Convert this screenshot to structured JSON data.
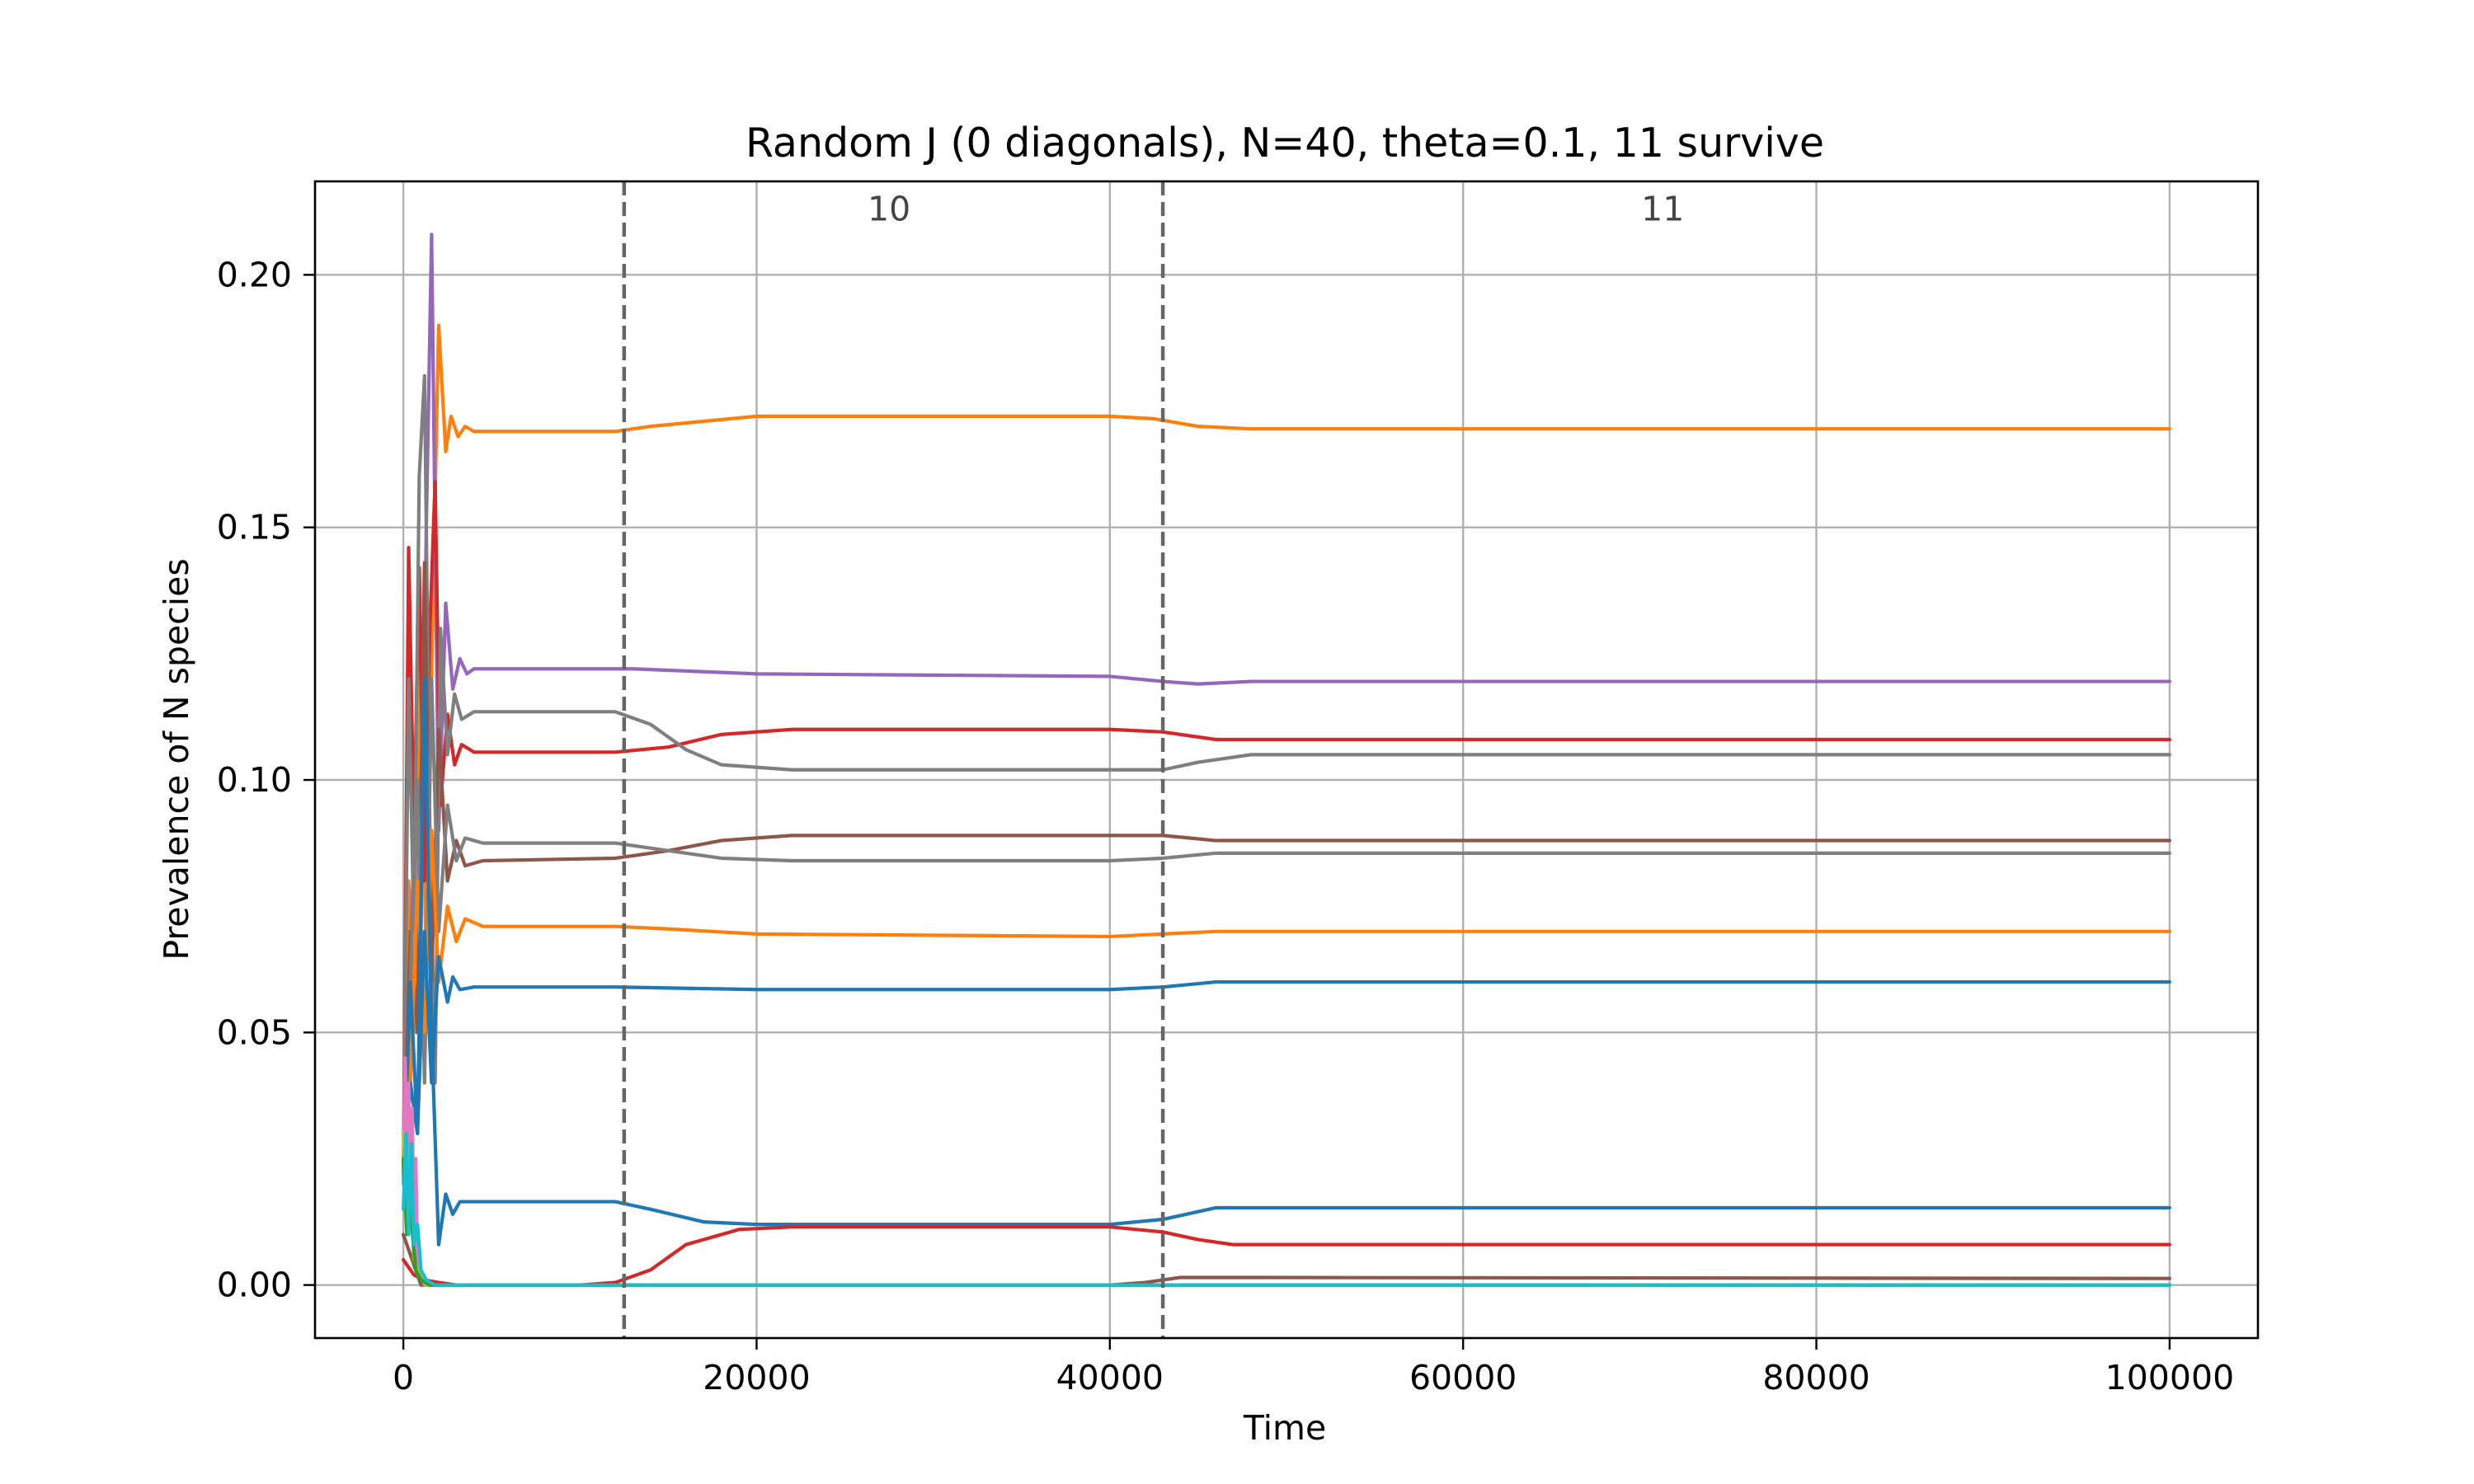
{
  "chart_data": {
    "type": "line",
    "title": "Random J (0 diagonals), N=40, theta=0.1, 11 survive",
    "xlabel": "Time",
    "ylabel": "Prevalence of N species",
    "xlim": [
      -5000,
      105000
    ],
    "ylim": [
      -0.0105,
      0.2185
    ],
    "x_ticks": [
      0,
      20000,
      40000,
      60000,
      80000,
      100000
    ],
    "x_tick_labels": [
      "0",
      "20000",
      "40000",
      "60000",
      "80000",
      "100000"
    ],
    "y_ticks": [
      0.0,
      0.05,
      0.1,
      0.15,
      0.2
    ],
    "y_tick_labels": [
      "0.00",
      "0.05",
      "0.10",
      "0.15",
      "0.20"
    ],
    "grid": true,
    "vlines": [
      {
        "x": 12500,
        "style": "dashed",
        "color": "#666666"
      },
      {
        "x": 43000,
        "style": "dashed",
        "color": "#666666"
      }
    ],
    "annotations": [
      {
        "text": "10",
        "x": 27500,
        "y": 0.213
      },
      {
        "text": "11",
        "x": 71300,
        "y": 0.213
      }
    ],
    "series": [
      {
        "color": "#ff7f0e",
        "x": [
          0,
          300,
          700,
          1000,
          1300,
          1700,
          2000,
          2400,
          2700,
          3100,
          3500,
          4000,
          5000,
          12000,
          14000,
          17000,
          20000,
          40000,
          42500,
          45000,
          48000,
          100000
        ],
        "y": [
          0.02,
          0.08,
          0.05,
          0.13,
          0.06,
          0.14,
          0.19,
          0.165,
          0.172,
          0.168,
          0.17,
          0.169,
          0.169,
          0.169,
          0.17,
          0.171,
          0.172,
          0.172,
          0.1715,
          0.17,
          0.1695,
          0.1695
        ]
      },
      {
        "color": "#9467bd",
        "x": [
          0,
          300,
          700,
          1000,
          1300,
          1600,
          2000,
          2400,
          2800,
          3200,
          3600,
          4000,
          5000,
          13000,
          20000,
          40000,
          43000,
          45000,
          48000,
          100000
        ],
        "y": [
          0.02,
          0.05,
          0.1,
          0.07,
          0.15,
          0.208,
          0.09,
          0.135,
          0.118,
          0.124,
          0.121,
          0.122,
          0.122,
          0.122,
          0.121,
          0.1205,
          0.1195,
          0.119,
          0.1195,
          0.1195
        ]
      },
      {
        "color": "#d62728",
        "x": [
          0,
          300,
          600,
          900,
          1200,
          1500,
          1800,
          2100,
          2500,
          2900,
          3300,
          4000,
          5000,
          12000,
          15000,
          18000,
          22000,
          40000,
          43000,
          46000,
          49000,
          100000
        ],
        "y": [
          0.02,
          0.146,
          0.09,
          0.142,
          0.08,
          0.13,
          0.159,
          0.095,
          0.113,
          0.103,
          0.107,
          0.1055,
          0.1055,
          0.1055,
          0.1065,
          0.109,
          0.11,
          0.11,
          0.1095,
          0.108,
          0.108,
          0.108
        ]
      },
      {
        "color": "#7f7f7f",
        "x": [
          0,
          300,
          600,
          900,
          1200,
          1500,
          1800,
          2100,
          2500,
          2900,
          3300,
          4000,
          5000,
          12000,
          14000,
          16000,
          18000,
          22000,
          40000,
          43000,
          45000,
          48000,
          100000
        ],
        "y": [
          0.02,
          0.12,
          0.07,
          0.16,
          0.18,
          0.09,
          0.04,
          0.13,
          0.105,
          0.117,
          0.112,
          0.1135,
          0.1135,
          0.1135,
          0.111,
          0.106,
          0.103,
          0.102,
          0.102,
          0.102,
          0.1035,
          0.105,
          0.105
        ]
      },
      {
        "color": "#8c564b",
        "x": [
          0,
          400,
          800,
          1200,
          1600,
          2000,
          2500,
          3000,
          3500,
          4500,
          12000,
          15000,
          18000,
          22000,
          40000,
          43000,
          46000,
          100000
        ],
        "y": [
          0.02,
          0.07,
          0.05,
          0.143,
          0.06,
          0.11,
          0.08,
          0.088,
          0.083,
          0.084,
          0.0845,
          0.086,
          0.088,
          0.089,
          0.089,
          0.089,
          0.088,
          0.088
        ]
      },
      {
        "color": "#7f7f7f",
        "x": [
          0,
          400,
          800,
          1200,
          1600,
          2000,
          2500,
          3000,
          3500,
          4500,
          12000,
          15000,
          18000,
          22000,
          40000,
          43000,
          46000,
          100000
        ],
        "y": [
          0.02,
          0.06,
          0.1,
          0.04,
          0.12,
          0.07,
          0.095,
          0.084,
          0.0885,
          0.0875,
          0.0875,
          0.086,
          0.0845,
          0.084,
          0.084,
          0.0845,
          0.0855,
          0.0855
        ]
      },
      {
        "color": "#ff7f0e",
        "x": [
          0,
          400,
          800,
          1200,
          1600,
          2000,
          2500,
          3000,
          3500,
          4500,
          12000,
          15000,
          20000,
          40000,
          43000,
          46000,
          100000
        ],
        "y": [
          0.02,
          0.04,
          0.08,
          0.05,
          0.09,
          0.06,
          0.075,
          0.068,
          0.0725,
          0.071,
          0.071,
          0.0705,
          0.0695,
          0.069,
          0.0695,
          0.07,
          0.07
        ]
      },
      {
        "color": "#1f77b4",
        "x": [
          0,
          400,
          800,
          1200,
          1600,
          2000,
          2500,
          2800,
          3200,
          4000,
          12000,
          20000,
          40000,
          43000,
          46000,
          100000
        ],
        "y": [
          0.02,
          0.04,
          0.03,
          0.07,
          0.04,
          0.065,
          0.056,
          0.061,
          0.0585,
          0.059,
          0.059,
          0.0585,
          0.0585,
          0.059,
          0.06,
          0.06
        ]
      },
      {
        "color": "#1f77b4",
        "x": [
          0,
          400,
          800,
          1200,
          1600,
          2000,
          2400,
          2800,
          3200,
          4000,
          12000,
          14000,
          17000,
          20000,
          40000,
          43000,
          46000,
          100000
        ],
        "y": [
          0.02,
          0.06,
          0.03,
          0.12,
          0.05,
          0.008,
          0.018,
          0.014,
          0.0165,
          0.0165,
          0.0165,
          0.015,
          0.0125,
          0.012,
          0.012,
          0.013,
          0.0153,
          0.0153
        ]
      },
      {
        "color": "#d62728",
        "x": [
          0,
          600,
          1200,
          2000,
          3000,
          5000,
          10000,
          12000,
          14000,
          16000,
          19000,
          22000,
          40000,
          43000,
          45000,
          47000,
          100000
        ],
        "y": [
          0.005,
          0.002,
          0.001,
          0.0005,
          0.0,
          0.0,
          0.0,
          0.0005,
          0.003,
          0.008,
          0.011,
          0.0115,
          0.0115,
          0.0105,
          0.009,
          0.008,
          0.008
        ]
      },
      {
        "color": "#8c564b",
        "x": [
          0,
          1000,
          3000,
          40000,
          42000,
          44000,
          46000,
          100000
        ],
        "y": [
          0.01,
          0.0,
          0.0,
          0.0,
          0.0005,
          0.0015,
          0.0015,
          0.0013
        ]
      },
      {
        "color": "#e377c2",
        "x": [
          0,
          100,
          200,
          300,
          400,
          500,
          600,
          700,
          800,
          1000,
          1200,
          1600,
          2500,
          100000
        ],
        "y": [
          0.02,
          0.045,
          0.025,
          0.04,
          0.015,
          0.035,
          0.01,
          0.025,
          0.005,
          0.002,
          0.0,
          0.0,
          0.0,
          0.0
        ]
      },
      {
        "color": "#bcbd22",
        "x": [
          0,
          200,
          400,
          600,
          900,
          1300,
          2000,
          100000
        ],
        "y": [
          0.03,
          0.015,
          0.02,
          0.005,
          0.002,
          0.0,
          0.0,
          0.0
        ]
      },
      {
        "color": "#2ca02c",
        "x": [
          0,
          200,
          400,
          700,
          1000,
          1500,
          100000
        ],
        "y": [
          0.025,
          0.01,
          0.015,
          0.003,
          0.001,
          0.0,
          0.0
        ]
      },
      {
        "color": "#17becf",
        "x": [
          0,
          150,
          300,
          450,
          600,
          800,
          1000,
          1300,
          1800,
          100000
        ],
        "y": [
          0.015,
          0.03,
          0.01,
          0.028,
          0.008,
          0.012,
          0.003,
          0.001,
          0.0,
          0.0
        ]
      }
    ]
  }
}
